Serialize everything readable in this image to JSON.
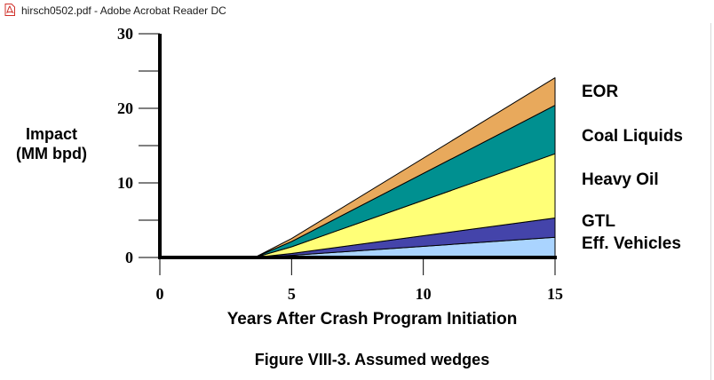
{
  "window": {
    "title": "hirsch0502.pdf - Adobe Acrobat Reader DC",
    "icon": "pdf-file-icon"
  },
  "chart_data": {
    "type": "area",
    "stacked": true,
    "title": "",
    "caption": "Figure VIII-3.  Assumed wedges",
    "xlabel": "Years After Crash Program Initiation",
    "ylabel": "Impact\n(MM bpd)",
    "xlim": [
      0,
      15
    ],
    "ylim": [
      0,
      30
    ],
    "xticks": [
      0,
      5,
      10,
      15
    ],
    "yticks": [
      0,
      10,
      20,
      30
    ],
    "grid": false,
    "legend_placement": "right",
    "x": [
      0,
      3.6,
      5,
      15
    ],
    "series": [
      {
        "name": "Eff. Vehicles",
        "color": "#aad4ff",
        "values": [
          0,
          0,
          0.28,
          2.7
        ]
      },
      {
        "name": "GTL",
        "color": "#4444aa",
        "values": [
          0,
          0,
          0.25,
          2.6
        ]
      },
      {
        "name": "Heavy Oil",
        "color": "#ffff77",
        "values": [
          0,
          0,
          0.9,
          8.6
        ]
      },
      {
        "name": "Coal Liquids",
        "color": "#009090",
        "values": [
          0,
          0,
          0.7,
          6.5
        ]
      },
      {
        "name": "EOR",
        "color": "#e8a95c",
        "values": [
          0,
          0,
          0.4,
          3.7
        ]
      }
    ]
  }
}
